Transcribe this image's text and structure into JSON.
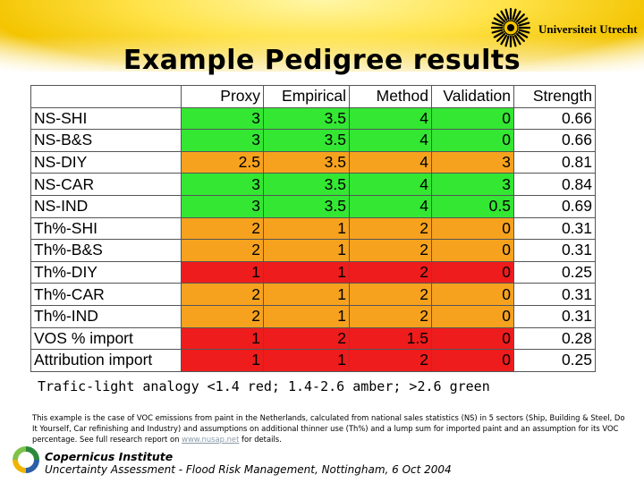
{
  "header": {
    "university": "Universiteit Utrecht",
    "title": "Example Pedigree results"
  },
  "colors": {
    "green": "#33e733",
    "amber": "#f7a21e",
    "red": "#ee1c1c",
    "header_band": "#f3c400"
  },
  "table": {
    "columns": [
      "",
      "Proxy",
      "Empirical",
      "Method",
      "Validation",
      "Strength"
    ],
    "rows": [
      {
        "label": "NS-SHI",
        "values": [
          "3",
          "3.5",
          "4",
          "0",
          "0.66"
        ],
        "status": "green"
      },
      {
        "label": "NS-B&S",
        "values": [
          "3",
          "3.5",
          "4",
          "0",
          "0.66"
        ],
        "status": "green"
      },
      {
        "label": "NS-DIY",
        "values": [
          "2.5",
          "3.5",
          "4",
          "3",
          "0.81"
        ],
        "status": "amber"
      },
      {
        "label": "NS-CAR",
        "values": [
          "3",
          "3.5",
          "4",
          "3",
          "0.84"
        ],
        "status": "green"
      },
      {
        "label": "NS-IND",
        "values": [
          "3",
          "3.5",
          "4",
          "0.5",
          "0.69"
        ],
        "status": "green"
      },
      {
        "label": "Th%-SHI",
        "values": [
          "2",
          "1",
          "2",
          "0",
          "0.31"
        ],
        "status": "amber"
      },
      {
        "label": "Th%-B&S",
        "values": [
          "2",
          "1",
          "2",
          "0",
          "0.31"
        ],
        "status": "amber"
      },
      {
        "label": "Th%-DIY",
        "values": [
          "1",
          "1",
          "2",
          "0",
          "0.25"
        ],
        "status": "red"
      },
      {
        "label": "Th%-CAR",
        "values": [
          "2",
          "1",
          "2",
          "0",
          "0.31"
        ],
        "status": "amber"
      },
      {
        "label": "Th%-IND",
        "values": [
          "2",
          "1",
          "2",
          "0",
          "0.31"
        ],
        "status": "amber"
      },
      {
        "label": "VOS % import",
        "values": [
          "1",
          "2",
          "1.5",
          "0",
          "0.28"
        ],
        "status": "red"
      },
      {
        "label": "Attribution import",
        "values": [
          "1",
          "1",
          "2",
          "0",
          "0.25"
        ],
        "status": "red"
      }
    ]
  },
  "legend_text": "Trafic-light analogy <1.4 red; 1.4-2.6 amber; >2.6 green",
  "description": {
    "text": "This example is the case of VOC emissions from paint in the Netherlands, calculated from national sales statistics (NS) in 5 sectors (Ship, Building & Steel, Do It Yourself, Car refinishing and Industry) and assumptions on additional thinner use (Th%) and a lump sum for imported paint and an assumption for its VOC percentage. See full research report on ",
    "link": "www.nusap.net",
    "suffix": " for details."
  },
  "footer": {
    "institute": "Copernicus Institute",
    "event": "Uncertainty Assessment - Flood Risk Management, Nottingham, 6 Oct 2004"
  }
}
